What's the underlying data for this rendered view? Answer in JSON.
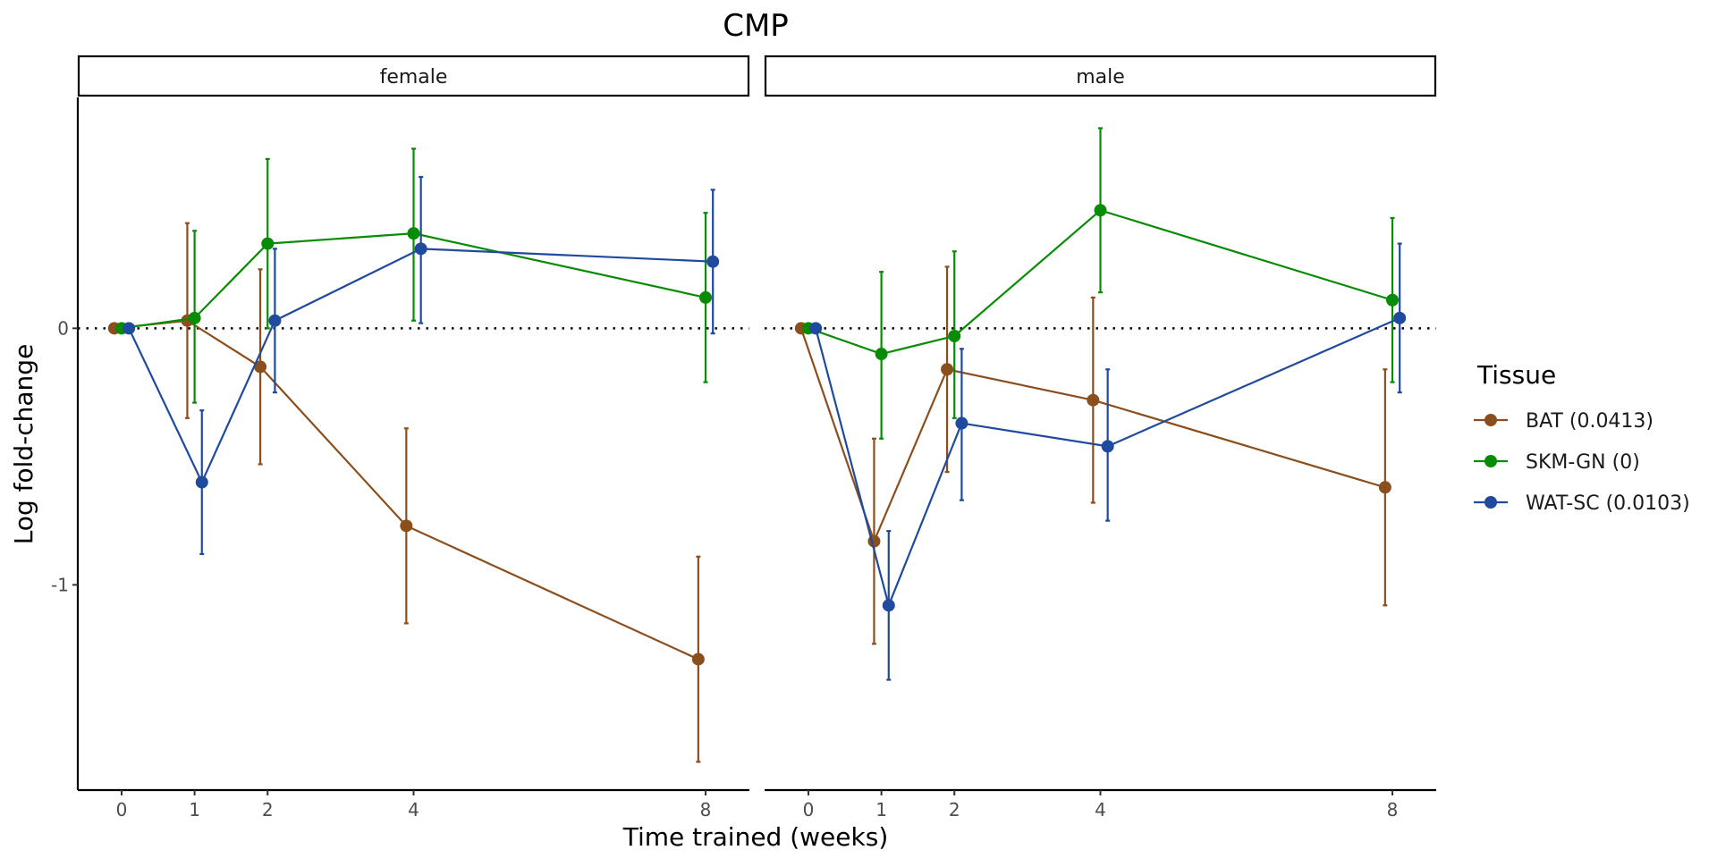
{
  "chart_data": {
    "type": "line",
    "title": "CMP",
    "xlabel": "Time trained (weeks)",
    "ylabel": "Log fold-change",
    "x_ticks": [
      0,
      1,
      2,
      4,
      8
    ],
    "y_ticks": [
      {
        "value": 0,
        "label": "0"
      },
      {
        "value": -1,
        "label": "-1"
      }
    ],
    "ylim": [
      -1.8,
      0.9
    ],
    "xlim": [
      -0.6,
      8.6
    ],
    "reference_line": {
      "y": 0,
      "style": "dotted"
    },
    "legend": {
      "title": "Tissue",
      "placement": "right"
    },
    "series": [
      {
        "name": "BAT (0.0413)",
        "color": "#8B4F1D",
        "offset": -0.1
      },
      {
        "name": "SKM-GN (0)",
        "color": "#088C06",
        "offset": 0.0
      },
      {
        "name": "WAT-SC (0.0103)",
        "color": "#1F4A9E",
        "offset": 0.1
      }
    ],
    "panels": [
      {
        "label": "female",
        "series": [
          {
            "name": "BAT (0.0413)",
            "points": [
              {
                "x": 0,
                "y": 0,
                "lo": 0,
                "hi": 0
              },
              {
                "x": 1,
                "y": 0.03,
                "lo": -0.35,
                "hi": 0.41
              },
              {
                "x": 2,
                "y": -0.15,
                "lo": -0.53,
                "hi": 0.23
              },
              {
                "x": 4,
                "y": -0.77,
                "lo": -1.15,
                "hi": -0.39
              },
              {
                "x": 8,
                "y": -1.29,
                "lo": -1.69,
                "hi": -0.89
              }
            ]
          },
          {
            "name": "SKM-GN (0)",
            "points": [
              {
                "x": 0,
                "y": 0,
                "lo": 0,
                "hi": 0
              },
              {
                "x": 1,
                "y": 0.04,
                "lo": -0.29,
                "hi": 0.38
              },
              {
                "x": 2,
                "y": 0.33,
                "lo": 0.0,
                "hi": 0.66
              },
              {
                "x": 4,
                "y": 0.37,
                "lo": 0.03,
                "hi": 0.7
              },
              {
                "x": 8,
                "y": 0.12,
                "lo": -0.21,
                "hi": 0.45
              }
            ]
          },
          {
            "name": "WAT-SC (0.0103)",
            "points": [
              {
                "x": 0,
                "y": 0,
                "lo": 0,
                "hi": 0
              },
              {
                "x": 1,
                "y": -0.6,
                "lo": -0.88,
                "hi": -0.32
              },
              {
                "x": 2,
                "y": 0.03,
                "lo": -0.25,
                "hi": 0.31
              },
              {
                "x": 4,
                "y": 0.31,
                "lo": 0.02,
                "hi": 0.59
              },
              {
                "x": 8,
                "y": 0.26,
                "lo": -0.02,
                "hi": 0.54
              }
            ]
          }
        ]
      },
      {
        "label": "male",
        "series": [
          {
            "name": "BAT (0.0413)",
            "points": [
              {
                "x": 0,
                "y": 0,
                "lo": 0,
                "hi": 0
              },
              {
                "x": 1,
                "y": -0.83,
                "lo": -1.23,
                "hi": -0.43
              },
              {
                "x": 2,
                "y": -0.16,
                "lo": -0.56,
                "hi": 0.24
              },
              {
                "x": 4,
                "y": -0.28,
                "lo": -0.68,
                "hi": 0.12
              },
              {
                "x": 8,
                "y": -0.62,
                "lo": -1.08,
                "hi": -0.16
              }
            ]
          },
          {
            "name": "SKM-GN (0)",
            "points": [
              {
                "x": 0,
                "y": 0,
                "lo": 0,
                "hi": 0
              },
              {
                "x": 1,
                "y": -0.1,
                "lo": -0.43,
                "hi": 0.22
              },
              {
                "x": 2,
                "y": -0.03,
                "lo": -0.35,
                "hi": 0.3
              },
              {
                "x": 4,
                "y": 0.46,
                "lo": 0.14,
                "hi": 0.78
              },
              {
                "x": 8,
                "y": 0.11,
                "lo": -0.21,
                "hi": 0.43
              }
            ]
          },
          {
            "name": "WAT-SC (0.0103)",
            "points": [
              {
                "x": 0,
                "y": 0,
                "lo": 0,
                "hi": 0
              },
              {
                "x": 1,
                "y": -1.08,
                "lo": -1.37,
                "hi": -0.79
              },
              {
                "x": 2,
                "y": -0.37,
                "lo": -0.67,
                "hi": -0.08
              },
              {
                "x": 4,
                "y": -0.46,
                "lo": -0.75,
                "hi": -0.16
              },
              {
                "x": 8,
                "y": 0.04,
                "lo": -0.25,
                "hi": 0.33
              }
            ]
          }
        ]
      }
    ]
  }
}
